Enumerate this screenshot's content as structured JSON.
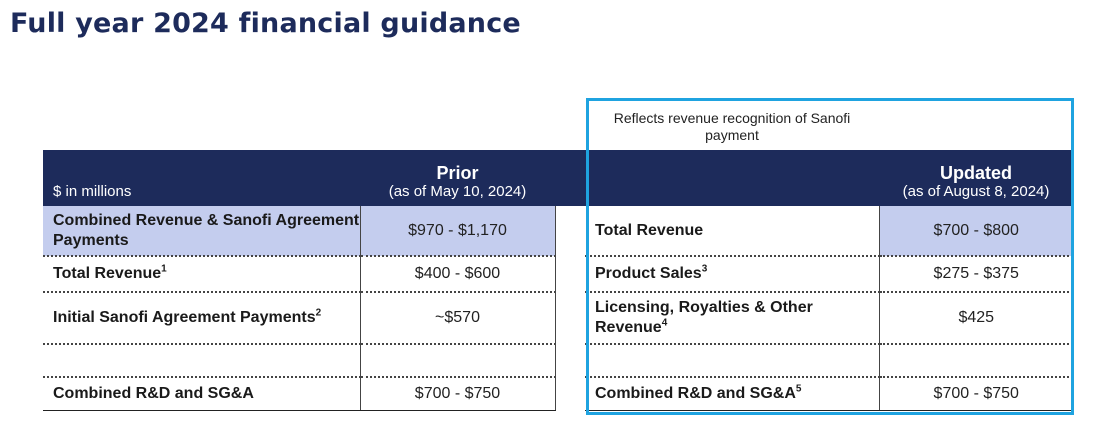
{
  "title": "Full year 2024 financial guidance",
  "note": "Reflects revenue recognition of Sanofi payment",
  "header": {
    "units": "$ in millions",
    "prior_main": "Prior",
    "prior_sub": "(as of May 10, 2024)",
    "updated_main": "Updated",
    "updated_sub": "(as of August 8, 2024)"
  },
  "rows": [
    {
      "prior_label": "Combined Revenue & Sanofi Agreement Payments",
      "prior_sup": "",
      "prior_value": "$970 - $1,170",
      "updated_label": "Total Revenue",
      "updated_sup": "",
      "updated_value": "$700 - $800"
    },
    {
      "prior_label": "Total Revenue",
      "prior_sup": "1",
      "prior_value": "$400 - $600",
      "updated_label": "Product Sales",
      "updated_sup": "3",
      "updated_value": "$275 - $375"
    },
    {
      "prior_label": "Initial Sanofi Agreement Payments",
      "prior_sup": "2",
      "prior_value": "~$570",
      "updated_label": "Licensing, Royalties & Other Revenue",
      "updated_sup": "4",
      "updated_value": "$425"
    },
    {
      "prior_label": "",
      "prior_sup": "",
      "prior_value": "",
      "updated_label": "",
      "updated_sup": "",
      "updated_value": ""
    },
    {
      "prior_label": "Combined R&D and SG&A",
      "prior_sup": "",
      "prior_value": "$700 - $750",
      "updated_label": "Combined R&D and SG&A",
      "updated_sup": "5",
      "updated_value": "$700 - $750"
    }
  ],
  "colors": {
    "header_bg": "#1d2b5b",
    "highlight_row": "#c4cdee",
    "box_border": "#1fa3e0"
  }
}
